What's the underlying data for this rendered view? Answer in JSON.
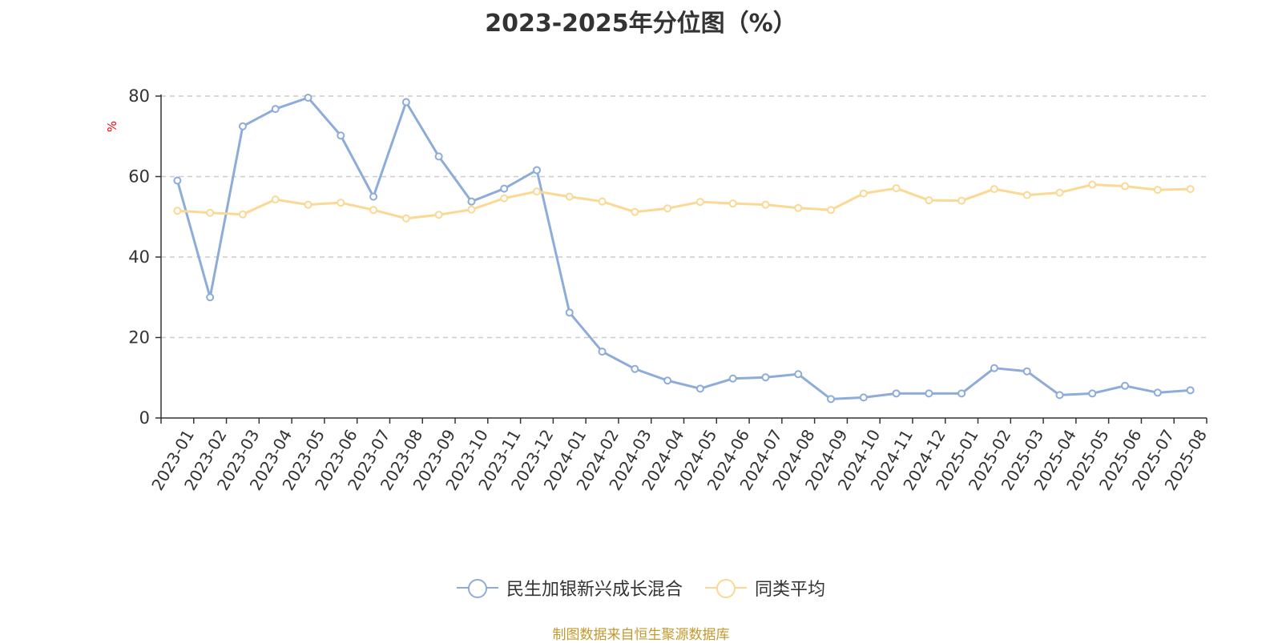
{
  "title": "2023-2025年分位图（%）",
  "source": "制图数据来自恒生聚源数据库",
  "colors": {
    "series1": "#8eacd9",
    "series2": "#fbd893",
    "grid": "#cccccc",
    "axis": "#333333",
    "unit": "#ff0000",
    "source": "#c49a2e"
  },
  "chart_data": {
    "type": "line",
    "title": "2023-2025年分位图（%）",
    "ylabel": "%",
    "ylim": [
      0,
      80
    ],
    "yticks": [
      0,
      20,
      40,
      60,
      80
    ],
    "grid": true,
    "legend": "bottom",
    "categories": [
      "2023-01",
      "2023-02",
      "2023-03",
      "2023-04",
      "2023-05",
      "2023-06",
      "2023-07",
      "2023-08",
      "2023-09",
      "2023-10",
      "2023-11",
      "2023-12",
      "2024-01",
      "2024-02",
      "2024-03",
      "2024-04",
      "2024-05",
      "2024-06",
      "2024-07",
      "2024-08",
      "2024-09",
      "2024-10",
      "2024-11",
      "2024-12",
      "2025-01",
      "2025-02",
      "2025-03",
      "2025-04",
      "2025-05",
      "2025-06",
      "2025-07",
      "2025-08"
    ],
    "series": [
      {
        "name": "民生加银新兴成长混合",
        "values": [
          59.0,
          30.0,
          72.5,
          76.8,
          79.6,
          70.2,
          55.0,
          78.5,
          65.0,
          53.8,
          57.0,
          61.6,
          26.2,
          16.5,
          12.2,
          9.3,
          7.3,
          9.8,
          10.1,
          10.9,
          4.7,
          5.1,
          6.1,
          6.1,
          6.1,
          12.4,
          11.6,
          5.7,
          6.1,
          8.0,
          6.3,
          6.9
        ]
      },
      {
        "name": "同类平均",
        "values": [
          51.5,
          51.0,
          50.6,
          54.3,
          53.0,
          53.5,
          51.7,
          49.6,
          50.5,
          51.8,
          54.6,
          56.3,
          55.0,
          53.8,
          51.2,
          52.1,
          53.7,
          53.3,
          53.0,
          52.2,
          51.7,
          55.8,
          57.1,
          54.1,
          54.0,
          56.9,
          55.4,
          56.0,
          58.0,
          57.6,
          56.7,
          56.9
        ]
      }
    ]
  }
}
